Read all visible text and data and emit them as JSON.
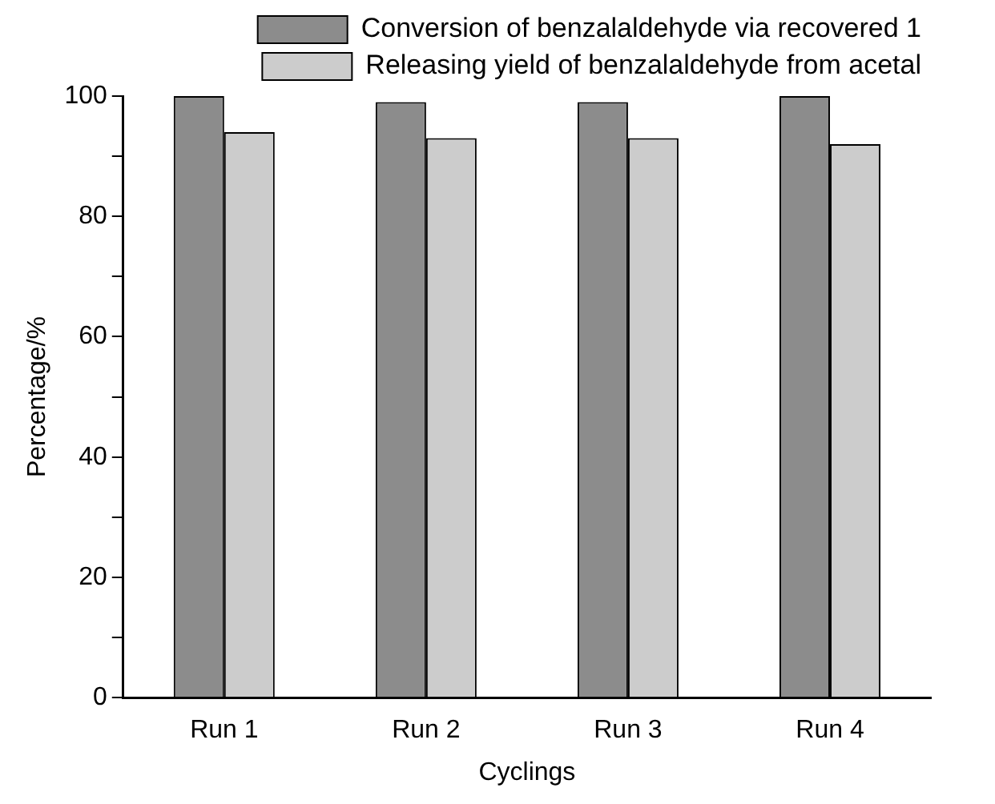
{
  "chart_data": {
    "type": "bar",
    "xlabel": "Cyclings",
    "ylabel": "Percentage/%",
    "categories": [
      "Run 1",
      "Run 2",
      "Run 3",
      "Run 4"
    ],
    "series": [
      {
        "name": "Conversion of benzalaldehyde via recovered 1",
        "color": "#8c8c8c",
        "values": [
          100,
          99,
          99,
          100
        ]
      },
      {
        "name": "Releasing yield of benzalaldehyde from acetal",
        "color": "#cccccc",
        "values": [
          94,
          93,
          93,
          92
        ]
      }
    ],
    "ylim": [
      0,
      100
    ],
    "yticks": [
      0,
      {
        "value": 10,
        "label": null
      },
      20,
      {
        "value": 30,
        "label": null
      },
      40,
      {
        "value": 50,
        "label": null
      },
      60,
      {
        "value": 70,
        "label": null
      },
      80,
      {
        "value": 90,
        "label": null
      },
      100
    ],
    "grid": false,
    "legend": "top"
  }
}
